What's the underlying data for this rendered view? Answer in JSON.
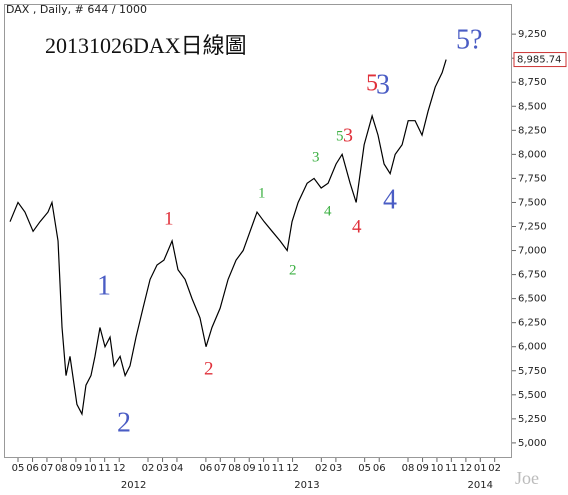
{
  "chart_data": {
    "type": "line",
    "title": "20131026DAX日線圖",
    "subtitle": "DAX , Daily, # 644 / 1000",
    "watermark": "Joe",
    "last_price_label": {
      "value": 8985.74,
      "label": "8,985.74"
    },
    "color": "#000000",
    "x": [
      2011.287,
      2011.333,
      2011.373,
      2011.42,
      2011.46,
      2011.506,
      2011.529,
      2011.564,
      2011.587,
      2011.61,
      2011.633,
      2011.673,
      2011.702,
      2011.725,
      2011.754,
      2011.777,
      2011.806,
      2011.835,
      2011.864,
      2011.887,
      2011.922,
      2011.951,
      2011.979,
      2012.014,
      2012.054,
      2012.095,
      2012.135,
      2012.175,
      2012.222,
      2012.256,
      2012.297,
      2012.337,
      2012.383,
      2012.418,
      2012.452,
      2012.499,
      2012.545,
      2012.591,
      2012.632,
      2012.672,
      2012.712,
      2012.753,
      2012.799,
      2012.845,
      2012.886,
      2012.914,
      2012.949,
      2013.001,
      2013.041,
      2013.082,
      2013.122,
      2013.168,
      2013.203,
      2013.249,
      2013.284,
      2013.33,
      2013.376,
      2013.41,
      2013.445,
      2013.48,
      2013.509,
      2013.549,
      2013.584,
      2013.624,
      2013.664,
      2013.699,
      2013.74,
      2013.78,
      2013.803
    ],
    "values": [
      7300,
      7500,
      7400,
      7200,
      7300,
      7400,
      7500,
      7100,
      6200,
      5700,
      5900,
      5400,
      5300,
      5600,
      5700,
      5900,
      6200,
      6000,
      6100,
      5800,
      5900,
      5700,
      5800,
      6100,
      6400,
      6700,
      6850,
      6900,
      7100,
      6800,
      6700,
      6500,
      6300,
      6000,
      6200,
      6400,
      6700,
      6900,
      7000,
      7200,
      7400,
      7300,
      7200,
      7100,
      7000,
      7300,
      7500,
      7700,
      7750,
      7650,
      7700,
      7900,
      8000,
      7700,
      7500,
      8100,
      8400,
      8200,
      7900,
      7800,
      8000,
      8100,
      8350,
      8350,
      8200,
      8450,
      8700,
      8850,
      8985.74
    ],
    "xlim": [
      2011.258,
      2014.183
    ],
    "ylim": [
      4843,
      9553
    ],
    "yticks": [
      {
        "value": 5000,
        "label": "5,000"
      },
      {
        "value": 5250,
        "label": "5,250"
      },
      {
        "value": 5500,
        "label": "5,500"
      },
      {
        "value": 5750,
        "label": "5,750"
      },
      {
        "value": 6000,
        "label": "6,000"
      },
      {
        "value": 6250,
        "label": "6,250"
      },
      {
        "value": 6500,
        "label": "6,500"
      },
      {
        "value": 6750,
        "label": "6,750"
      },
      {
        "value": 7000,
        "label": "7,000"
      },
      {
        "value": 7250,
        "label": "7,250"
      },
      {
        "value": 7500,
        "label": "7,500"
      },
      {
        "value": 7750,
        "label": "7,750"
      },
      {
        "value": 8000,
        "label": "8,000"
      },
      {
        "value": 8250,
        "label": "8,250"
      },
      {
        "value": 8500,
        "label": "8,500"
      },
      {
        "value": 8750,
        "label": "8,750"
      },
      {
        "value": 9000,
        "label": "9,000"
      },
      {
        "value": 9250,
        "label": "9,250"
      }
    ],
    "xticks": [
      {
        "value": 2011.333,
        "label": "05"
      },
      {
        "value": 2011.417,
        "label": "06"
      },
      {
        "value": 2011.5,
        "label": "07"
      },
      {
        "value": 2011.583,
        "label": "08"
      },
      {
        "value": 2011.667,
        "label": "09"
      },
      {
        "value": 2011.75,
        "label": "10"
      },
      {
        "value": 2011.833,
        "label": "11"
      },
      {
        "value": 2011.917,
        "label": "12"
      },
      {
        "value": 2012.083,
        "label": "02"
      },
      {
        "value": 2012.167,
        "label": "03"
      },
      {
        "value": 2012.25,
        "label": "04"
      },
      {
        "value": 2012.417,
        "label": "06"
      },
      {
        "value": 2012.5,
        "label": "07"
      },
      {
        "value": 2012.583,
        "label": "08"
      },
      {
        "value": 2012.667,
        "label": "09"
      },
      {
        "value": 2012.75,
        "label": "10"
      },
      {
        "value": 2012.833,
        "label": "11"
      },
      {
        "value": 2012.917,
        "label": "12"
      },
      {
        "value": 2013.083,
        "label": "02"
      },
      {
        "value": 2013.167,
        "label": "03"
      },
      {
        "value": 2013.333,
        "label": "05"
      },
      {
        "value": 2013.417,
        "label": "06"
      },
      {
        "value": 2013.583,
        "label": "08"
      },
      {
        "value": 2013.667,
        "label": "09"
      },
      {
        "value": 2013.75,
        "label": "10"
      },
      {
        "value": 2013.833,
        "label": "11"
      },
      {
        "value": 2013.917,
        "label": "12"
      },
      {
        "value": 2014.0,
        "label": "01"
      },
      {
        "value": 2014.083,
        "label": "02"
      }
    ],
    "year_ticks": [
      2012,
      2013,
      2014
    ],
    "annotations": [
      {
        "text": "5?",
        "color": "#4a5cc4"
      },
      {
        "text": "5",
        "color": "#e0303a"
      },
      {
        "text": "3",
        "color": "#4a5cc4"
      },
      {
        "text": "3",
        "color": "#3cb043"
      },
      {
        "text": "5",
        "color": "#3cb043"
      },
      {
        "text": "3",
        "color": "#e0303a"
      },
      {
        "text": "4",
        "color": "#3cb043"
      },
      {
        "text": "4",
        "color": "#e0303a"
      },
      {
        "text": "4",
        "color": "#4a5cc4"
      },
      {
        "text": "1",
        "color": "#3cb043"
      },
      {
        "text": "2",
        "color": "#3cb043"
      },
      {
        "text": "1",
        "color": "#e0303a"
      },
      {
        "text": "2",
        "color": "#e0303a"
      },
      {
        "text": "1",
        "color": "#4a5cc4"
      },
      {
        "text": "2",
        "color": "#4a5cc4"
      }
    ]
  }
}
